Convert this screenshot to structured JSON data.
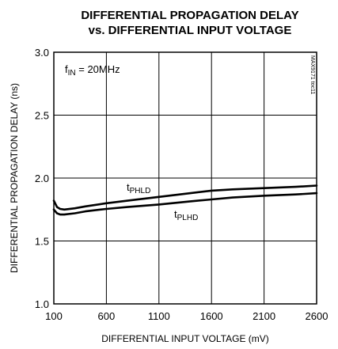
{
  "chart_data": {
    "type": "line",
    "title": "DIFFERENTIAL PROPAGATION DELAY",
    "subtitle": "vs. DIFFERENTIAL INPUT VOLTAGE",
    "xlabel": "DIFFERENTIAL INPUT VOLTAGE (mV)",
    "ylabel": "DIFFERENTIAL PROPAGATION DELAY (ns)",
    "xlim": [
      100,
      2600
    ],
    "ylim": [
      1.0,
      3.0
    ],
    "x_ticks": [
      "100",
      "600",
      "1100",
      "1600",
      "2100",
      "2600"
    ],
    "y_ticks": [
      "1.0",
      "1.5",
      "2.0",
      "2.5",
      "3.0"
    ],
    "grid": true,
    "annotation": {
      "main": "f",
      "sub": "IN",
      "rest": " = 20MHz"
    },
    "side_code": "MAX9171 toc11",
    "series": [
      {
        "name": "tPHLD",
        "label_main": "t",
        "label_sub": "PHLD",
        "x": [
          100,
          130,
          160,
          200,
          300,
          400,
          600,
          800,
          1100,
          1400,
          1600,
          1800,
          2100,
          2400,
          2600
        ],
        "y": [
          1.82,
          1.77,
          1.755,
          1.75,
          1.76,
          1.775,
          1.8,
          1.82,
          1.85,
          1.88,
          1.9,
          1.91,
          1.92,
          1.93,
          1.94
        ]
      },
      {
        "name": "tPLHD",
        "label_main": "t",
        "label_sub": "PLHD",
        "x": [
          100,
          130,
          160,
          200,
          300,
          400,
          600,
          800,
          1100,
          1400,
          1600,
          1800,
          2100,
          2400,
          2600
        ],
        "y": [
          1.75,
          1.72,
          1.71,
          1.71,
          1.72,
          1.735,
          1.755,
          1.77,
          1.79,
          1.815,
          1.83,
          1.845,
          1.86,
          1.87,
          1.88
        ]
      }
    ]
  }
}
